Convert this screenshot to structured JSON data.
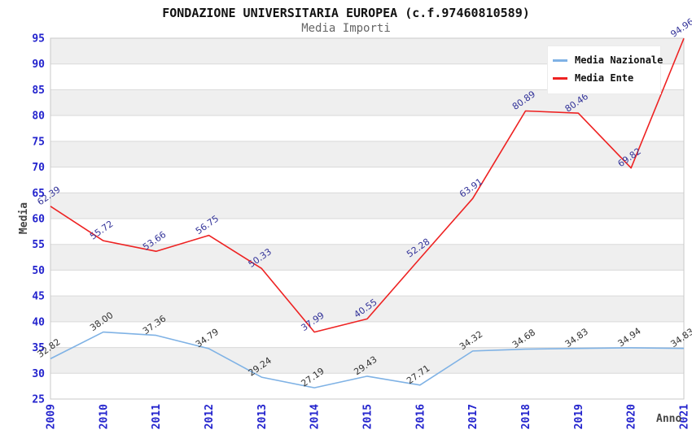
{
  "chart_data": {
    "type": "line",
    "title": "FONDAZIONE UNIVERSITARIA EUROPEA (c.f.97460810589)",
    "subtitle": "Media Importi",
    "xlabel": "Anno",
    "ylabel": "Media",
    "categories": [
      "2009",
      "2010",
      "2011",
      "2012",
      "2013",
      "2014",
      "2015",
      "2016",
      "2017",
      "2018",
      "2019",
      "2020",
      "2021"
    ],
    "ylim": [
      25,
      95
    ],
    "ytick_step": 5,
    "ytick_labels": [
      "25",
      "30",
      "35",
      "40",
      "45",
      "50",
      "55",
      "60",
      "65",
      "70",
      "75",
      "80",
      "85",
      "90",
      "95"
    ],
    "grid": true,
    "band_fill": "alternating-horizontal",
    "legend_position": "top-right",
    "series": [
      {
        "name": "Media Nazionale",
        "color": "#7fb2e5",
        "label_color": "#333333",
        "values": [
          32.82,
          38.0,
          37.36,
          34.79,
          29.24,
          27.19,
          29.43,
          27.71,
          34.32,
          34.68,
          34.83,
          34.94,
          34.83
        ],
        "value_labels": [
          "32.82",
          "38.00",
          "37.36",
          "34.79",
          "29.24",
          "27.19",
          "29.43",
          "27.71",
          "34.32",
          "34.68",
          "34.83",
          "34.94",
          "34.83"
        ]
      },
      {
        "name": "Media Ente",
        "color": "#ee2222",
        "label_color": "#333399",
        "values": [
          62.39,
          55.72,
          53.66,
          56.75,
          50.33,
          37.99,
          40.55,
          52.28,
          63.91,
          80.89,
          80.46,
          69.82,
          94.96
        ],
        "value_labels": [
          "62.39",
          "55.72",
          "53.66",
          "56.75",
          "50.33",
          "37.99",
          "40.55",
          "52.28",
          "63.91",
          "80.89",
          "80.46",
          "69.82",
          "94.96"
        ]
      }
    ],
    "colors": {
      "tick_label": "#2323cd",
      "band_gray": "#efefef",
      "band_white": "#ffffff",
      "grid_line": "#d9d9d9",
      "frame": "#c9c9c9",
      "title": "#111111",
      "subtitle": "#666666",
      "axis_label": "#444444",
      "legend_bg": "#ffffff",
      "legend_text": "#111111"
    }
  }
}
